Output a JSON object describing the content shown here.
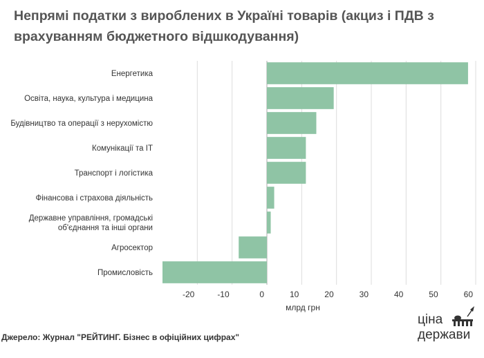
{
  "title": "Непрямі податки з вироблених в Україні товарів (акциз і ПДВ з врахуванням бюджетного відшкодування)",
  "source": "Джерело: Журнал \"РЕЙТИНГ. Бізнес в офіційних цифрах\"",
  "logo": {
    "line1": "ціна",
    "line2": "держави"
  },
  "colors": {
    "bar": "#8fc4a5",
    "grid": "#dcdcdc",
    "zero": "#aaaaaa"
  },
  "chart_data": {
    "type": "bar",
    "orientation": "horizontal",
    "categories": [
      [
        "Енергетика"
      ],
      [
        "Освіта, наука, культура і медицина"
      ],
      [
        "Будівництво та операції з нерухомістю"
      ],
      [
        "Комунікації та IT"
      ],
      [
        "Транспорт і логістика"
      ],
      [
        "Фінансова і страхова діяльність"
      ],
      [
        "Державне управління, громадські",
        "об'єднання та інші органи"
      ],
      [
        "Агросектор"
      ],
      [
        "Промисловість"
      ]
    ],
    "values": [
      57.8,
      19.2,
      14.2,
      11.2,
      11.2,
      2.1,
      1.1,
      -8.1,
      -30.0
    ],
    "xlabel": "млрд грн",
    "ylabel": "",
    "xlim": [
      -30,
      60
    ],
    "xticks": [
      -20,
      -10,
      0,
      10,
      20,
      30,
      40,
      50,
      60
    ],
    "grid": true,
    "legend": "none"
  }
}
